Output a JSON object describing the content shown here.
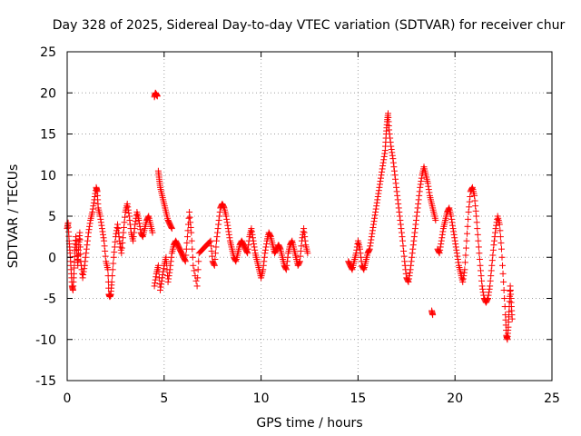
{
  "chart_data": {
    "type": "scatter",
    "title": "Day 328 of 2025, Sidereal Day-to-day VTEC variation (SDTVAR) for receiver chur",
    "xlabel": "GPS time / hours",
    "ylabel": "SDTVAR / TECUs",
    "xlim": [
      0,
      25
    ],
    "ylim": [
      -15,
      25
    ],
    "xticks": [
      0,
      5,
      10,
      15,
      20,
      25
    ],
    "yticks": [
      -15,
      -10,
      -5,
      0,
      5,
      10,
      15,
      20,
      25
    ],
    "grid": true,
    "marker": "+",
    "color": "#ff0000",
    "series": [
      {
        "name": "SDTVAR",
        "points": [
          [
            0.0,
            3.5
          ],
          [
            0.05,
            4.2
          ],
          [
            0.1,
            2.0
          ],
          [
            0.15,
            0.5
          ],
          [
            0.2,
            -1.5
          ],
          [
            0.25,
            -3.5
          ],
          [
            0.3,
            -4.0
          ],
          [
            0.35,
            -2.0
          ],
          [
            0.4,
            0.8
          ],
          [
            0.45,
            2.5
          ],
          [
            0.5,
            0.5
          ],
          [
            0.55,
            -1.0
          ],
          [
            0.6,
            1.5
          ],
          [
            0.65,
            3.0
          ],
          [
            0.7,
            -0.5
          ],
          [
            0.8,
            -2.5
          ],
          [
            0.9,
            -1.0
          ],
          [
            1.0,
            1.0
          ],
          [
            1.1,
            3.0
          ],
          [
            1.2,
            4.5
          ],
          [
            1.3,
            5.5
          ],
          [
            1.4,
            7.0
          ],
          [
            1.5,
            8.5
          ],
          [
            1.55,
            8.0
          ],
          [
            1.6,
            6.0
          ],
          [
            1.7,
            5.0
          ],
          [
            1.8,
            3.5
          ],
          [
            1.9,
            2.0
          ],
          [
            2.0,
            -0.5
          ],
          [
            2.1,
            -1.5
          ],
          [
            2.15,
            -4.5
          ],
          [
            2.2,
            -4.8
          ],
          [
            2.25,
            -4.5
          ],
          [
            2.3,
            -3.0
          ],
          [
            2.4,
            0.0
          ],
          [
            2.5,
            2.5
          ],
          [
            2.6,
            4.0
          ],
          [
            2.7,
            2.0
          ],
          [
            2.8,
            0.5
          ],
          [
            2.9,
            3.0
          ],
          [
            3.0,
            5.5
          ],
          [
            3.1,
            6.5
          ],
          [
            3.2,
            5.0
          ],
          [
            3.3,
            3.0
          ],
          [
            3.4,
            2.0
          ],
          [
            3.5,
            4.0
          ],
          [
            3.6,
            5.5
          ],
          [
            3.7,
            4.5
          ],
          [
            3.8,
            3.0
          ],
          [
            3.9,
            2.5
          ],
          [
            4.0,
            3.5
          ],
          [
            4.1,
            4.5
          ],
          [
            4.2,
            5.0
          ],
          [
            4.3,
            4.0
          ],
          [
            4.4,
            3.0
          ],
          [
            4.5,
            19.5
          ],
          [
            4.55,
            20.0
          ],
          [
            4.6,
            19.8
          ],
          [
            4.65,
            19.6
          ],
          [
            4.7,
            10.5
          ],
          [
            4.75,
            9.5
          ],
          [
            4.8,
            8.5
          ],
          [
            4.9,
            7.5
          ],
          [
            5.0,
            6.5
          ],
          [
            5.1,
            5.5
          ],
          [
            5.2,
            4.5
          ],
          [
            5.3,
            4.0
          ],
          [
            5.4,
            3.5
          ],
          [
            4.5,
            -3.5
          ],
          [
            4.6,
            -2.0
          ],
          [
            4.7,
            -1.0
          ],
          [
            4.8,
            -4.0
          ],
          [
            4.9,
            -2.5
          ],
          [
            5.0,
            -1.0
          ],
          [
            5.1,
            0.0
          ],
          [
            5.2,
            -3.0
          ],
          [
            5.3,
            -1.5
          ],
          [
            5.4,
            0.5
          ],
          [
            5.5,
            1.5
          ],
          [
            5.6,
            2.0
          ],
          [
            5.7,
            1.5
          ],
          [
            5.8,
            1.0
          ],
          [
            5.9,
            0.5
          ],
          [
            6.0,
            0.0
          ],
          [
            6.1,
            -0.5
          ],
          [
            6.2,
            2.5
          ],
          [
            6.3,
            5.5
          ],
          [
            6.4,
            3.0
          ],
          [
            6.5,
            -1.0
          ],
          [
            6.7,
            -3.5
          ],
          [
            6.8,
            0.5
          ],
          [
            7.0,
            1.0
          ],
          [
            7.2,
            1.5
          ],
          [
            7.4,
            2.0
          ],
          [
            7.5,
            -0.5
          ],
          [
            7.6,
            -1.0
          ],
          [
            7.7,
            2.0
          ],
          [
            7.8,
            4.0
          ],
          [
            7.9,
            6.0
          ],
          [
            8.0,
            6.5
          ],
          [
            8.1,
            6.0
          ],
          [
            8.2,
            5.0
          ],
          [
            8.3,
            3.5
          ],
          [
            8.4,
            2.0
          ],
          [
            8.5,
            1.0
          ],
          [
            8.6,
            0.0
          ],
          [
            8.7,
            -0.5
          ],
          [
            8.8,
            0.5
          ],
          [
            8.9,
            1.5
          ],
          [
            9.0,
            2.0
          ],
          [
            9.1,
            1.5
          ],
          [
            9.2,
            1.0
          ],
          [
            9.3,
            0.5
          ],
          [
            9.4,
            2.5
          ],
          [
            9.5,
            3.5
          ],
          [
            9.6,
            2.0
          ],
          [
            9.7,
            0.5
          ],
          [
            9.8,
            -0.5
          ],
          [
            9.9,
            -1.5
          ],
          [
            10.0,
            -2.5
          ],
          [
            10.1,
            -1.5
          ],
          [
            10.2,
            0.5
          ],
          [
            10.3,
            2.0
          ],
          [
            10.4,
            3.0
          ],
          [
            10.5,
            2.5
          ],
          [
            10.6,
            1.5
          ],
          [
            10.7,
            0.5
          ],
          [
            10.8,
            1.0
          ],
          [
            10.9,
            1.5
          ],
          [
            11.0,
            1.0
          ],
          [
            11.1,
            0.0
          ],
          [
            11.2,
            -1.0
          ],
          [
            11.3,
            -1.5
          ],
          [
            11.4,
            0.5
          ],
          [
            11.5,
            1.5
          ],
          [
            11.6,
            2.0
          ],
          [
            11.7,
            1.0
          ],
          [
            11.8,
            0.0
          ],
          [
            11.9,
            -1.0
          ],
          [
            12.0,
            -0.5
          ],
          [
            12.1,
            2.0
          ],
          [
            12.2,
            3.5
          ],
          [
            12.3,
            1.5
          ],
          [
            12.4,
            0.5
          ],
          [
            14.5,
            -0.5
          ],
          [
            14.6,
            -1.0
          ],
          [
            14.7,
            -1.5
          ],
          [
            14.8,
            -0.5
          ],
          [
            14.9,
            0.5
          ],
          [
            15.0,
            2.0
          ],
          [
            15.1,
            1.0
          ],
          [
            15.2,
            -1.0
          ],
          [
            15.3,
            -1.5
          ],
          [
            15.4,
            -0.5
          ],
          [
            15.5,
            0.5
          ],
          [
            15.6,
            1.0
          ],
          [
            15.7,
            2.5
          ],
          [
            15.8,
            4.0
          ],
          [
            15.9,
            5.5
          ],
          [
            16.0,
            7.0
          ],
          [
            16.1,
            8.5
          ],
          [
            16.2,
            10.0
          ],
          [
            16.3,
            11.5
          ],
          [
            16.4,
            13.0
          ],
          [
            16.45,
            15.0
          ],
          [
            16.5,
            16.5
          ],
          [
            16.55,
            17.5
          ],
          [
            16.6,
            15.5
          ],
          [
            16.7,
            13.5
          ],
          [
            16.8,
            12.0
          ],
          [
            16.9,
            10.0
          ],
          [
            17.0,
            8.0
          ],
          [
            17.1,
            6.0
          ],
          [
            17.2,
            4.0
          ],
          [
            17.3,
            2.0
          ],
          [
            17.4,
            -0.5
          ],
          [
            17.5,
            -2.5
          ],
          [
            17.6,
            -3.0
          ],
          [
            17.7,
            -1.5
          ],
          [
            17.8,
            0.5
          ],
          [
            17.9,
            2.5
          ],
          [
            18.0,
            4.5
          ],
          [
            18.1,
            6.5
          ],
          [
            18.2,
            8.5
          ],
          [
            18.3,
            10.0
          ],
          [
            18.4,
            11.0
          ],
          [
            18.5,
            10.0
          ],
          [
            18.6,
            9.0
          ],
          [
            18.7,
            7.5
          ],
          [
            18.8,
            6.5
          ],
          [
            18.9,
            5.5
          ],
          [
            19.0,
            4.5
          ],
          [
            18.8,
            -6.5
          ],
          [
            18.85,
            -7.0
          ],
          [
            19.1,
            1.0
          ],
          [
            19.2,
            0.5
          ],
          [
            19.3,
            2.0
          ],
          [
            19.4,
            3.5
          ],
          [
            19.5,
            4.5
          ],
          [
            19.6,
            5.5
          ],
          [
            19.7,
            6.0
          ],
          [
            19.8,
            5.0
          ],
          [
            19.9,
            3.5
          ],
          [
            20.0,
            2.0
          ],
          [
            20.1,
            0.5
          ],
          [
            20.2,
            -1.0
          ],
          [
            20.3,
            -2.0
          ],
          [
            20.4,
            -3.0
          ],
          [
            20.5,
            -1.5
          ],
          [
            20.6,
            2.0
          ],
          [
            20.7,
            5.5
          ],
          [
            20.8,
            8.0
          ],
          [
            20.9,
            8.5
          ],
          [
            21.0,
            7.5
          ],
          [
            21.1,
            5.0
          ],
          [
            21.2,
            2.0
          ],
          [
            21.3,
            -1.0
          ],
          [
            21.4,
            -3.5
          ],
          [
            21.5,
            -5.0
          ],
          [
            21.6,
            -5.5
          ],
          [
            21.7,
            -5.0
          ],
          [
            21.8,
            -3.5
          ],
          [
            21.9,
            -1.0
          ],
          [
            22.0,
            1.5
          ],
          [
            22.1,
            3.5
          ],
          [
            22.2,
            5.0
          ],
          [
            22.3,
            4.0
          ],
          [
            22.4,
            1.0
          ],
          [
            22.5,
            -3.0
          ],
          [
            22.6,
            -7.0
          ],
          [
            22.65,
            -9.5
          ],
          [
            22.7,
            -10.0
          ],
          [
            22.75,
            -8.5
          ],
          [
            22.8,
            -6.0
          ],
          [
            22.85,
            -3.5
          ],
          [
            22.9,
            -5.5
          ],
          [
            22.95,
            -7.5
          ]
        ]
      }
    ]
  }
}
